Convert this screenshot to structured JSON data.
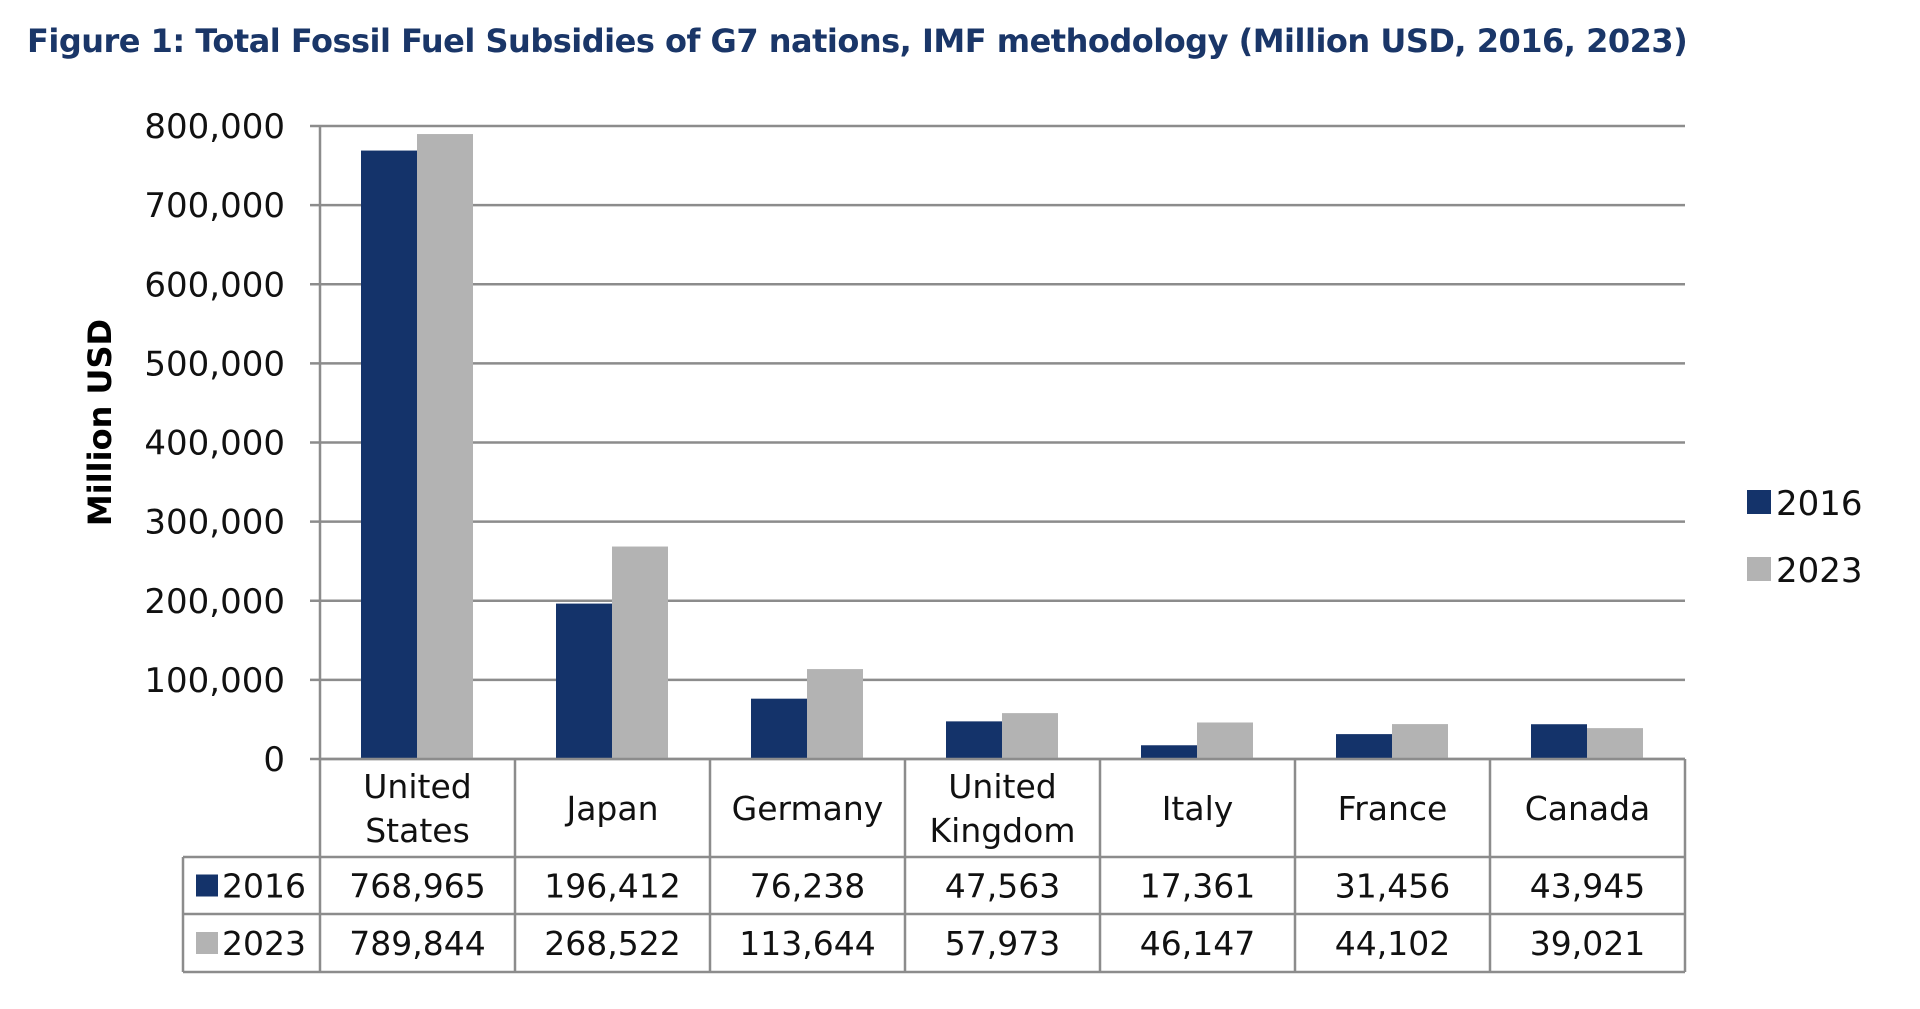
{
  "chart_data": {
    "type": "bar",
    "title": "Figure 1: Total Fossil Fuel Subsidies of G7 nations, IMF methodology (Million USD, 2016, 2023)",
    "xlabel": "",
    "ylabel": "Million USD",
    "ylim": [
      0,
      800000
    ],
    "yticks": [
      0,
      100000,
      200000,
      300000,
      400000,
      500000,
      600000,
      700000,
      800000
    ],
    "ytick_labels": [
      "0",
      "100,000",
      "200,000",
      "300,000",
      "400,000",
      "500,000",
      "600,000",
      "700,000",
      "800,000"
    ],
    "grid": true,
    "legend_placement": "right",
    "categories": [
      [
        "United",
        "States"
      ],
      [
        "Japan"
      ],
      [
        "Germany"
      ],
      [
        "United",
        "Kingdom"
      ],
      [
        "Italy"
      ],
      [
        "France"
      ],
      [
        "Canada"
      ]
    ],
    "series": [
      {
        "name": "2016",
        "color": "#14336a",
        "values": [
          768965,
          196412,
          76238,
          47563,
          17361,
          31456,
          43945
        ],
        "labels": [
          "768,965",
          "196,412",
          "76,238",
          "47,563",
          "17,361",
          "31,456",
          "43,945"
        ]
      },
      {
        "name": "2023",
        "color": "#b3b3b3",
        "values": [
          789844,
          268522,
          113644,
          57973,
          46147,
          44102,
          39021
        ],
        "labels": [
          "789,844",
          "268,522",
          "113,644",
          "57,973",
          "46,147",
          "44,102",
          "39,021"
        ]
      }
    ],
    "data_table": true
  }
}
